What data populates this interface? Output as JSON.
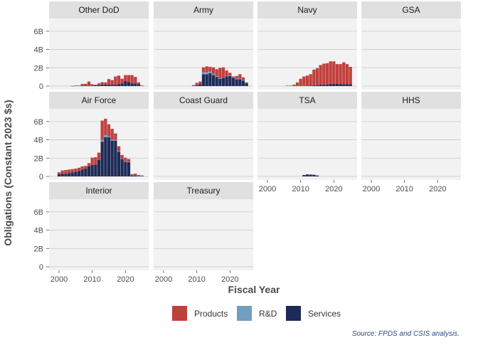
{
  "chart_data": {
    "type": "bar",
    "stacked": true,
    "facet_layout": "wrap 4 columns, free y labels on first column",
    "xlabel": "Fiscal Year",
    "ylabel": "Obligations (Constant 2023 $s)",
    "y_ticks": [
      "0",
      "2B",
      "4B",
      "6B"
    ],
    "y_tick_values": [
      0,
      2,
      4,
      6
    ],
    "ylim": [
      0,
      7
    ],
    "x_ticks": [
      "2000",
      "2010",
      "2020"
    ],
    "x_tick_values": [
      2000,
      2010,
      2020
    ],
    "xlim": [
      1997,
      2027
    ],
    "grid": true,
    "legend": {
      "position": "bottom",
      "entries": [
        {
          "name": "Products",
          "color": "#c0403d"
        },
        {
          "name": "R&D",
          "color": "#6f9ec0"
        },
        {
          "name": "Services",
          "color": "#1e2b58"
        }
      ]
    },
    "source_note": "Source: FPDS and CSIS analysis.",
    "years": [
      2000,
      2001,
      2002,
      2003,
      2004,
      2005,
      2006,
      2007,
      2008,
      2009,
      2010,
      2011,
      2012,
      2013,
      2014,
      2015,
      2016,
      2017,
      2018,
      2019,
      2020,
      2021,
      2022,
      2023,
      2024,
      2025
    ],
    "panels": [
      {
        "name": "Other DoD",
        "services": [
          0,
          0,
          0,
          0,
          0.02,
          0.05,
          0.04,
          0.05,
          0.05,
          0.05,
          0.05,
          0.1,
          0.1,
          0.15,
          0.15,
          0.15,
          0.15,
          0.15,
          0.2,
          0.3,
          0.55,
          0.45,
          0.3,
          0.3,
          0.2,
          0.05
        ],
        "rd": [
          0,
          0,
          0,
          0,
          0,
          0,
          0,
          0,
          0,
          0,
          0,
          0,
          0,
          0,
          0,
          0,
          0,
          0,
          0,
          0,
          0,
          0,
          0,
          0,
          0,
          0
        ],
        "products": [
          0,
          0,
          0,
          0,
          0,
          0,
          0,
          0.18,
          0.2,
          0.45,
          0.15,
          0.05,
          0.2,
          0.28,
          0.25,
          0.62,
          0.5,
          0.9,
          0.95,
          0.5,
          0.65,
          0.75,
          0.9,
          0.7,
          0.2,
          0
        ]
      },
      {
        "name": "Army",
        "services": [
          0,
          0,
          0,
          0,
          0,
          0,
          0,
          0,
          0,
          0.05,
          0.1,
          0.2,
          1.3,
          1.3,
          1.4,
          1.2,
          1.0,
          0.8,
          0.9,
          1.05,
          1.1,
          0.9,
          0.75,
          0.75,
          0.6,
          0.3
        ],
        "rd": [
          0,
          0,
          0,
          0,
          0,
          0,
          0,
          0,
          0,
          0,
          0,
          0,
          0.2,
          0.2,
          0.2,
          0.15,
          0.1,
          0.05,
          0.05,
          0.05,
          0.05,
          0.05,
          0.05,
          0.05,
          0.05,
          0
        ],
        "products": [
          0,
          0,
          0,
          0,
          0,
          0,
          0,
          0,
          0,
          0.05,
          0.25,
          0.3,
          0.55,
          0.65,
          0.5,
          0.7,
          0.75,
          1.15,
          1.1,
          0.6,
          0.3,
          0.1,
          0.3,
          0.5,
          0.3,
          0.1
        ]
      },
      {
        "name": "Navy",
        "services": [
          0,
          0,
          0,
          0,
          0,
          0,
          0,
          0,
          0,
          0,
          0,
          0,
          0.05,
          0.05,
          0.1,
          0.1,
          0.15,
          0.15,
          0.15,
          0.25,
          0.25,
          0.25,
          0.25,
          0.2,
          0.2,
          0.2
        ],
        "rd": [
          0,
          0,
          0,
          0,
          0,
          0,
          0,
          0,
          0,
          0,
          0,
          0,
          0,
          0,
          0,
          0,
          0,
          0,
          0,
          0,
          0,
          0,
          0,
          0,
          0,
          0
        ],
        "products": [
          0,
          0,
          0,
          0,
          0,
          0,
          0.05,
          0.05,
          0.15,
          0.4,
          0.8,
          1.05,
          1.1,
          1.25,
          1.7,
          1.85,
          2.15,
          2.3,
          2.35,
          2.45,
          2.45,
          2.15,
          2.15,
          2.4,
          2.2,
          1.9
        ]
      },
      {
        "name": "GSA",
        "services": [],
        "rd": [],
        "products": []
      },
      {
        "name": "Air Force",
        "services": [
          0.25,
          0.3,
          0.3,
          0.35,
          0.45,
          0.5,
          0.6,
          0.75,
          0.85,
          1.1,
          1.25,
          1.3,
          1.8,
          3.8,
          4.3,
          4.3,
          3.9,
          3.9,
          2.7,
          1.9,
          1.6,
          1.55,
          0.1,
          0.1,
          0.05,
          0.05
        ],
        "rd": [
          0,
          0,
          0,
          0,
          0,
          0,
          0,
          0,
          0,
          0,
          0,
          0,
          0,
          0.2,
          0.2,
          0.1,
          0.1,
          0.1,
          0.05,
          0.05,
          0.05,
          0.05,
          0,
          0,
          0,
          0
        ],
        "products": [
          0.2,
          0.35,
          0.4,
          0.4,
          0.35,
          0.35,
          0.35,
          0.35,
          0.3,
          0.35,
          0.8,
          0.8,
          0.8,
          2.1,
          1.8,
          1.3,
          1.2,
          0.7,
          0.55,
          0.4,
          0.4,
          0.3,
          0.15,
          0.2,
          0.1,
          0.05
        ]
      },
      {
        "name": "Coast Guard",
        "services": [],
        "rd": [],
        "products": []
      },
      {
        "name": "TSA",
        "services": [
          0,
          0,
          0,
          0,
          0,
          0,
          0,
          0,
          0,
          0,
          0,
          0.15,
          0.22,
          0.2,
          0.18,
          0.1,
          0,
          0,
          0,
          0,
          0,
          0,
          0,
          0,
          0,
          0
        ],
        "rd": [
          0,
          0,
          0,
          0,
          0,
          0,
          0,
          0,
          0,
          0,
          0,
          0,
          0,
          0,
          0,
          0,
          0,
          0,
          0,
          0,
          0,
          0,
          0,
          0,
          0,
          0
        ],
        "products": [
          0,
          0,
          0,
          0,
          0,
          0,
          0,
          0,
          0,
          0,
          0,
          0,
          0,
          0,
          0,
          0,
          0,
          0,
          0,
          0,
          0,
          0,
          0,
          0,
          0,
          0
        ]
      },
      {
        "name": "HHS",
        "services": [],
        "rd": [],
        "products": []
      },
      {
        "name": "Interior",
        "services": [],
        "rd": [],
        "products": []
      },
      {
        "name": "Treasury",
        "services": [],
        "rd": [],
        "products": []
      }
    ]
  }
}
